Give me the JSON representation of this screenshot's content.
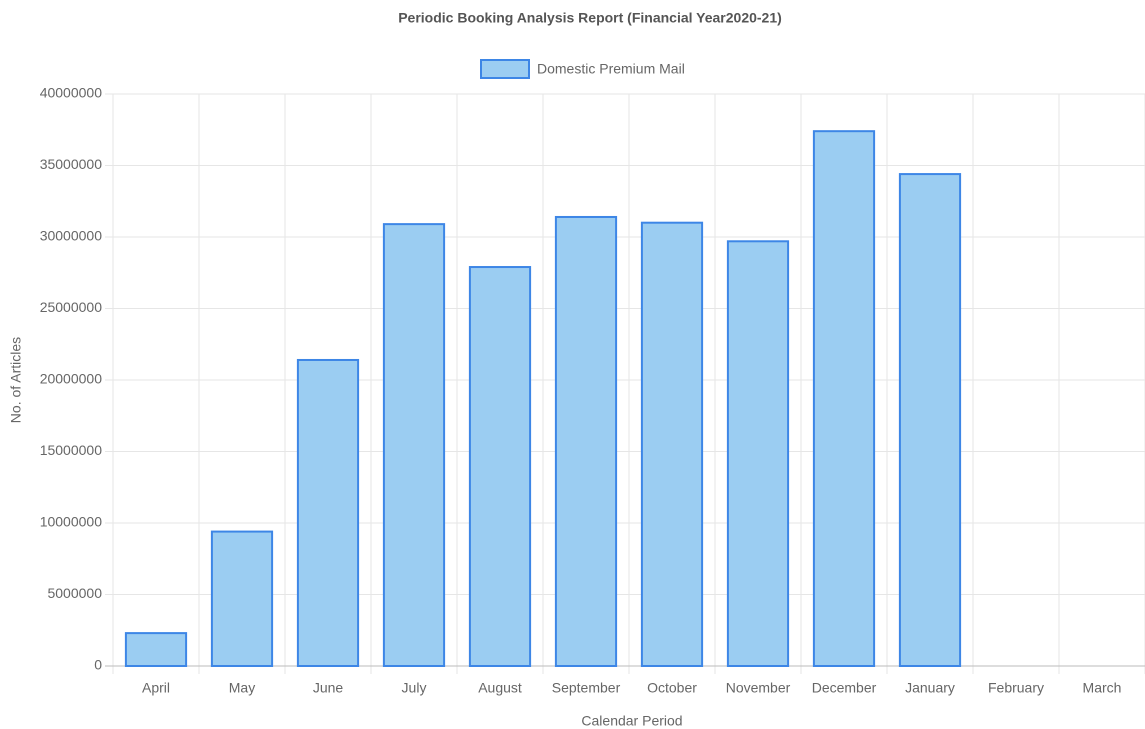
{
  "chart_data": {
    "type": "bar",
    "title": "Periodic Booking Analysis Report (Financial Year2020-21)",
    "x_label": "Calendar Period",
    "y_label": "No. of Articles",
    "categories": [
      "April",
      "May",
      "June",
      "July",
      "August",
      "September",
      "October",
      "November",
      "December",
      "January",
      "February",
      "March"
    ],
    "series": [
      {
        "name": "Domestic Premium Mail",
        "color": "#9bcdf2",
        "border_color": "#3d86e6",
        "values": [
          2300000,
          9400000,
          21400000,
          30900000,
          27900000,
          31400000,
          31000000,
          29700000,
          37400000,
          34400000,
          0,
          0
        ]
      }
    ],
    "ylim": [
      0,
      40000000
    ],
    "yticks": [
      0,
      5000000,
      10000000,
      15000000,
      20000000,
      25000000,
      30000000,
      35000000,
      40000000
    ],
    "grid": true,
    "legend": "top"
  }
}
